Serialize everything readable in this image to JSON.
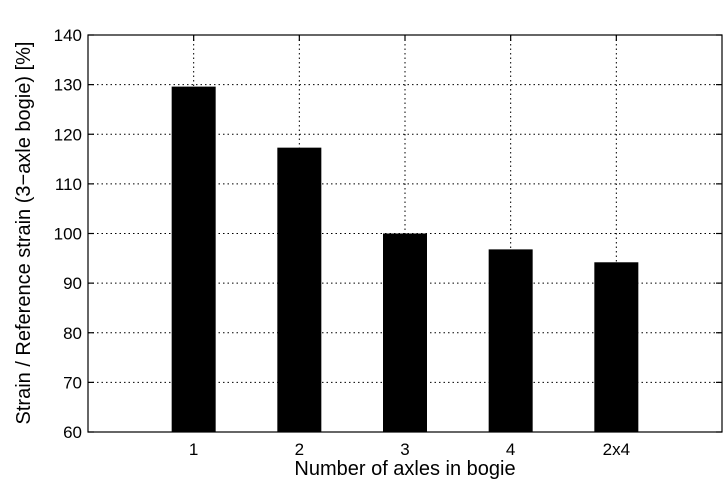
{
  "chart_data": {
    "type": "bar",
    "title": "",
    "categories": [
      "1",
      "2",
      "3",
      "4",
      "2x4"
    ],
    "values": [
      129.6,
      117.3,
      100.0,
      96.8,
      94.2
    ],
    "xlabel": "Number of axles in bogie",
    "ylabel": "Strain / Reference strain (3−axle bogie) [%]",
    "ylim": [
      60,
      140
    ],
    "yticks": [
      60,
      70,
      80,
      90,
      100,
      110,
      120,
      130,
      140
    ],
    "grid": true,
    "bar_color": "#000000"
  }
}
